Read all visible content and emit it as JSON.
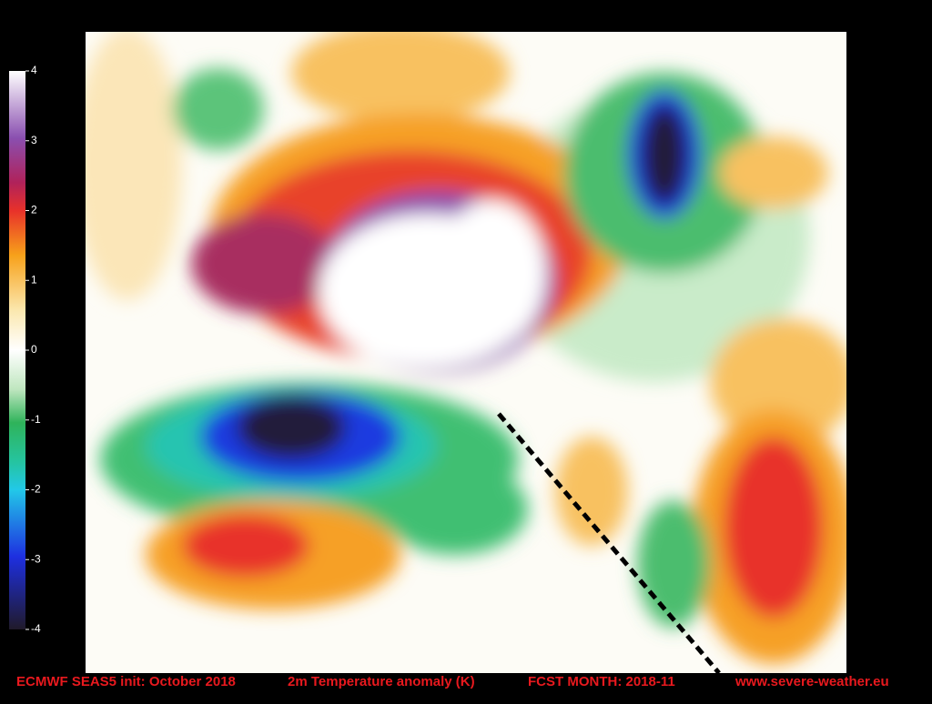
{
  "colorbar": {
    "lim": [
      -4,
      4
    ],
    "ticks": [
      4,
      3,
      2,
      1,
      0,
      -1,
      -2,
      -3,
      -4
    ]
  },
  "footer": [
    "ECMWF SEAS5 init: October 2018",
    "2m Temperature anomaly (K)",
    "FCST MONTH: 2018-11",
    "www.severe-weather.eu"
  ]
}
